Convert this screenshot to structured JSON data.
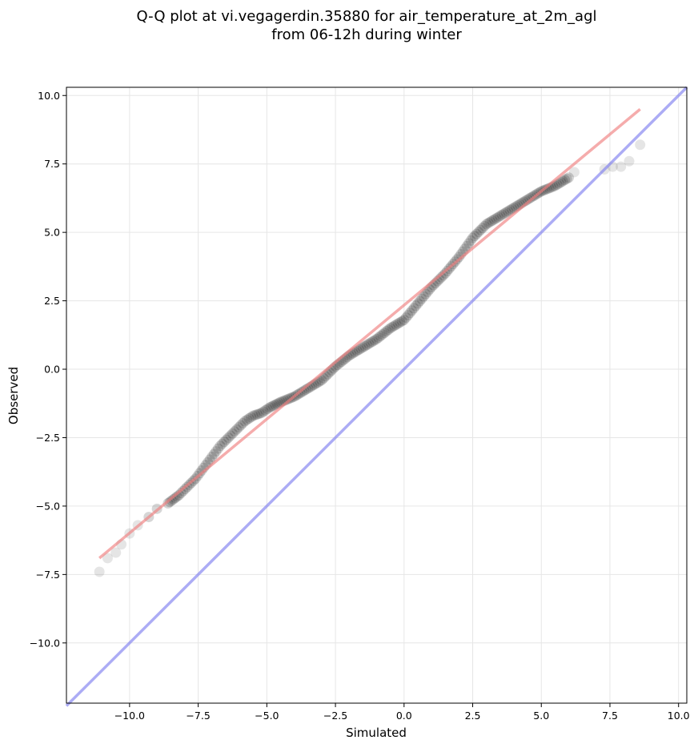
{
  "chart_data": {
    "type": "scatter",
    "title": "Q-Q plot at vi.vegagerdin.35880 for air_temperature_at_2m_agl",
    "subtitle": "from 06-12h during winter",
    "xlabel": "Simulated",
    "ylabel": "Observed",
    "xlim": [
      -12.3,
      10.3
    ],
    "ylim": [
      -12.2,
      10.3
    ],
    "xticks": [
      -10.0,
      -7.5,
      -5.0,
      -2.5,
      0.0,
      2.5,
      5.0,
      7.5,
      10.0
    ],
    "yticks": [
      -10.0,
      -7.5,
      -5.0,
      -2.5,
      0.0,
      2.5,
      5.0,
      7.5,
      10.0
    ],
    "xtick_labels": [
      "−10.0",
      "−7.5",
      "−5.0",
      "−2.5",
      "0.0",
      "2.5",
      "5.0",
      "7.5",
      "10.0"
    ],
    "ytick_labels": [
      "−10.0",
      "−7.5",
      "−5.0",
      "−2.5",
      "0.0",
      "2.5",
      "5.0",
      "7.5",
      "10.0"
    ],
    "grid": true,
    "colors": {
      "points": "#000000",
      "fit_line": "#f08080",
      "identity_line": "#8080f0"
    },
    "identity_line": {
      "x": [
        -12.3,
        10.3
      ],
      "y": [
        -12.3,
        10.3
      ]
    },
    "fit_line": {
      "x": [
        -11.1,
        8.6
      ],
      "y": [
        -6.9,
        9.5
      ]
    },
    "quantiles": {
      "x": [
        -11.1,
        -10.8,
        -10.5,
        -10.3,
        -10.0,
        -9.7,
        -9.3,
        -9.0,
        -8.6,
        -8.2,
        -7.9,
        -7.6,
        -7.3,
        -7.0,
        -6.7,
        -6.4,
        -6.1,
        -5.8,
        -5.5,
        -5.2,
        -4.9,
        -4.5,
        -4.0,
        -3.5,
        -3.0,
        -2.5,
        -2.0,
        -1.5,
        -1.0,
        -0.5,
        0.0,
        0.5,
        1.0,
        1.5,
        2.0,
        2.5,
        3.0,
        3.5,
        4.0,
        4.5,
        5.0,
        5.5,
        6.0,
        6.2,
        7.3,
        7.6,
        7.9,
        8.2,
        8.6
      ],
      "y": [
        -7.4,
        -6.9,
        -6.7,
        -6.4,
        -6.0,
        -5.7,
        -5.4,
        -5.1,
        -4.9,
        -4.6,
        -4.3,
        -4.0,
        -3.6,
        -3.2,
        -2.8,
        -2.5,
        -2.2,
        -1.9,
        -1.7,
        -1.6,
        -1.4,
        -1.2,
        -1.0,
        -0.7,
        -0.4,
        0.1,
        0.5,
        0.8,
        1.1,
        1.5,
        1.8,
        2.4,
        3.0,
        3.5,
        4.1,
        4.8,
        5.3,
        5.6,
        5.9,
        6.2,
        6.5,
        6.7,
        7.0,
        7.2,
        7.3,
        7.4,
        7.4,
        7.6,
        8.2
      ]
    }
  }
}
